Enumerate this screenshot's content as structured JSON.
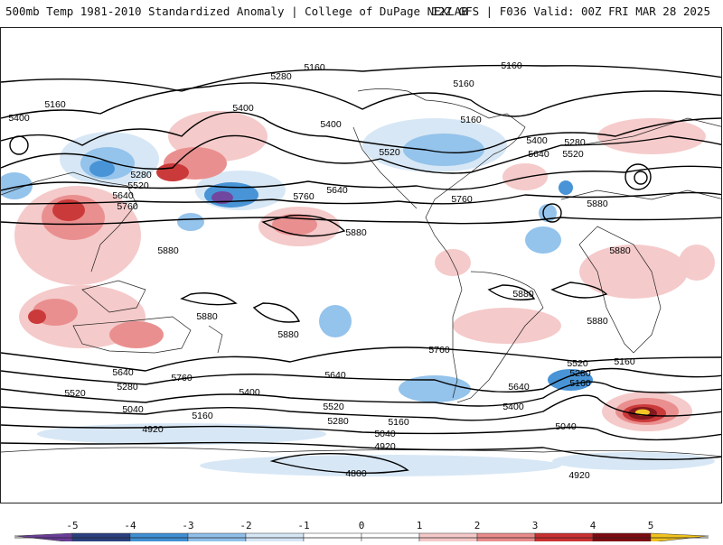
{
  "header": {
    "left_title": "500mb Temp 1981-2010 Standardized Anomaly | College of DuPage NEXLAB",
    "right_title": "12Z GFS | F036 Valid: 00Z FRI MAR 28 2025"
  },
  "map": {
    "contour_labels": [
      "5160",
      "5160",
      "5280",
      "5160",
      "5400",
      "5160",
      "5400",
      "5400",
      "5160",
      "5400",
      "5280",
      "5520",
      "5640",
      "5520",
      "5280",
      "5520",
      "5640",
      "5760",
      "5760",
      "5640",
      "5760",
      "5880",
      "5880",
      "5880",
      "5880",
      "5880",
      "5880",
      "5880",
      "5880",
      "5760",
      "5640",
      "5760",
      "5520",
      "5280",
      "5400",
      "5520",
      "5160",
      "5040",
      "5640",
      "5280",
      "5160",
      "5280",
      "5160",
      "5400",
      "5520",
      "5640",
      "5040",
      "4920",
      "4920",
      "4800",
      "4920",
      "5040",
      "5160"
    ]
  },
  "colorbar": {
    "ticks": [
      "-5",
      "-4",
      "-3",
      "-2",
      "-1",
      "0",
      "1",
      "2",
      "3",
      "4",
      "5"
    ],
    "colors": [
      "#6a3d9a",
      "#2a3f7f",
      "#3f8fd4",
      "#8fc0ea",
      "#d5e6f5",
      "#ffffff",
      "#ffffff",
      "#f5c8c8",
      "#e98a8a",
      "#c93030",
      "#7d0c12",
      "#f2c31b"
    ]
  }
}
